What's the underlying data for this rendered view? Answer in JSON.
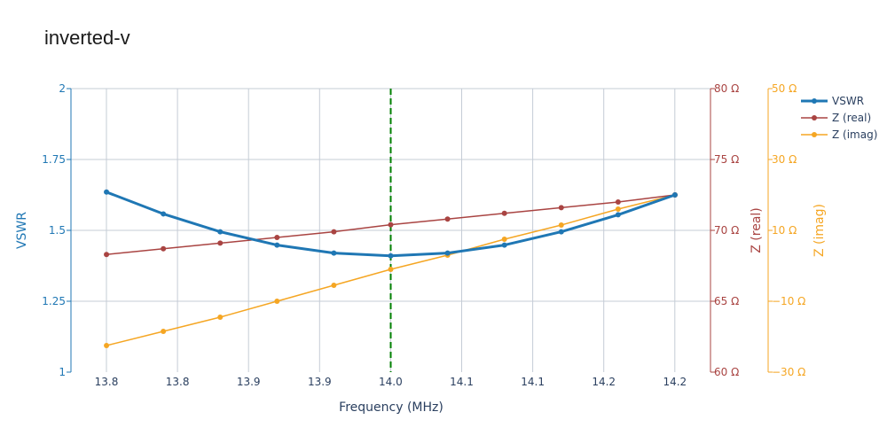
{
  "chart_data": {
    "type": "line",
    "title": "inverted-v",
    "xlabel": "Frequency (MHz)",
    "x": [
      13.8,
      13.84,
      13.88,
      13.92,
      13.96,
      14.0,
      14.04,
      14.08,
      14.12,
      14.16,
      14.2
    ],
    "x_tick_labels": [
      "13.8",
      "13.8",
      "13.9",
      "13.9",
      "14.0",
      "14.1",
      "14.1",
      "14.2",
      "14.2"
    ],
    "xlim": [
      13.775,
      14.225
    ],
    "marker_line": {
      "x": 14.0,
      "color": "#008000",
      "style": "dashed"
    },
    "axes": {
      "y": {
        "label": "VSWR",
        "range": [
          1,
          2
        ],
        "ticks": [
          "1",
          "1.25",
          "1.5",
          "1.75",
          "2"
        ],
        "color": "#1f77b4"
      },
      "y2": {
        "label": "Z (real)",
        "range": [
          60,
          80
        ],
        "ticks": [
          "60 Ω",
          "65 Ω",
          "70 Ω",
          "75 Ω",
          "80 Ω"
        ],
        "color": "#a94442"
      },
      "y3": {
        "label": "Z (imag)",
        "range": [
          -30,
          50
        ],
        "ticks": [
          "−30 Ω",
          "−10 Ω",
          "10 Ω",
          "30 Ω",
          "50 Ω"
        ],
        "color": "#f5a623"
      }
    },
    "series": [
      {
        "name": "VSWR",
        "axis": "y",
        "color": "#1f77b4",
        "values": [
          1.635,
          1.558,
          1.495,
          1.448,
          1.42,
          1.41,
          1.42,
          1.448,
          1.495,
          1.555,
          1.625
        ]
      },
      {
        "name": "Z (real)",
        "axis": "y2",
        "color": "#a94442",
        "values": [
          68.3,
          68.7,
          69.1,
          69.5,
          69.9,
          70.4,
          70.8,
          71.2,
          71.6,
          72.0,
          72.5
        ]
      },
      {
        "name": "Z (imag)",
        "axis": "y3",
        "color": "#f5a623",
        "values": [
          -22.5,
          -18.5,
          -14.5,
          -10.0,
          -5.5,
          -1.0,
          3.0,
          7.5,
          11.5,
          16.0,
          20.0
        ]
      }
    ],
    "legend": {
      "position": "top-right"
    },
    "grid": true
  }
}
